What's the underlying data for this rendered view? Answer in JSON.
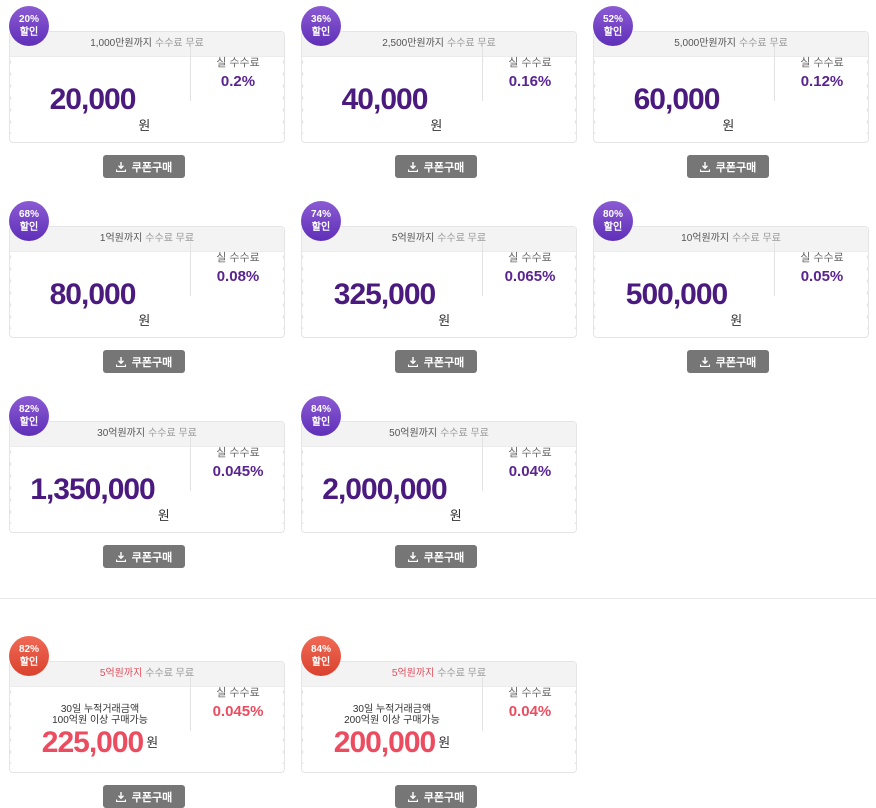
{
  "colors": {
    "purple": "#4a1a7f",
    "red": "#ec4c5f",
    "button": "#767676"
  },
  "button_label": "쿠폰구매",
  "button_icon": "download-icon",
  "won_unit": "원",
  "side_label": "실 수수료",
  "free_label": "수수료 무료",
  "coupons": [
    {
      "badge_pct": "20%",
      "badge_word": "할인",
      "limit": "1,000만원까지",
      "price": "20,000",
      "rate": "0.2%"
    },
    {
      "badge_pct": "36%",
      "badge_word": "할인",
      "limit": "2,500만원까지",
      "price": "40,000",
      "rate": "0.16%"
    },
    {
      "badge_pct": "52%",
      "badge_word": "할인",
      "limit": "5,000만원까지",
      "price": "60,000",
      "rate": "0.12%"
    },
    {
      "badge_pct": "68%",
      "badge_word": "할인",
      "limit": "1억원까지",
      "price": "80,000",
      "rate": "0.08%"
    },
    {
      "badge_pct": "74%",
      "badge_word": "할인",
      "limit": "5억원까지",
      "price": "325,000",
      "rate": "0.065%"
    },
    {
      "badge_pct": "80%",
      "badge_word": "할인",
      "limit": "10억원까지",
      "price": "500,000",
      "rate": "0.05%"
    },
    {
      "badge_pct": "82%",
      "badge_word": "할인",
      "limit": "30억원까지",
      "price": "1,350,000",
      "rate": "0.045%"
    },
    {
      "badge_pct": "84%",
      "badge_word": "할인",
      "limit": "50억원까지",
      "price": "2,000,000",
      "rate": "0.04%"
    }
  ],
  "special_coupons": [
    {
      "badge_pct": "82%",
      "badge_word": "할인",
      "limit": "5억원까지",
      "free": "수수료 무료",
      "cond1": "30일 누적거래금액",
      "cond2": "100억원 이상 구매가능",
      "price": "225,000",
      "rate": "0.045%"
    },
    {
      "badge_pct": "84%",
      "badge_word": "할인",
      "limit": "5억원까지",
      "free": "수수료 무료",
      "cond1": "30일 누적거래금액",
      "cond2": "200억원 이상 구매가능",
      "price": "200,000",
      "rate": "0.04%"
    }
  ]
}
